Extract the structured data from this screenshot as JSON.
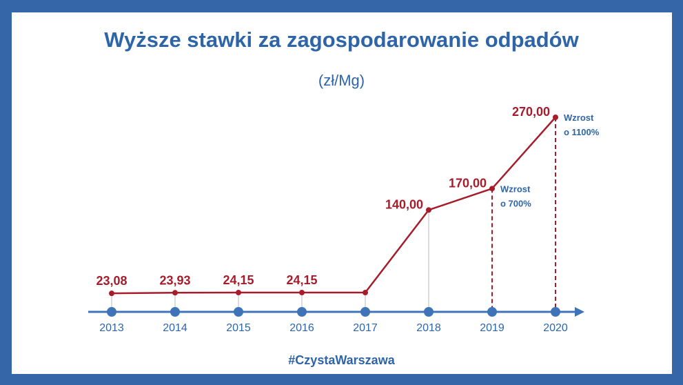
{
  "title": "Wyższe stawki za zagospodarowanie odpadów",
  "subtitle": "(zł/Mg)",
  "hashtag": "#CzystaWarszawa",
  "colors": {
    "frame": "#3566a8",
    "axis": "#3f74b8",
    "line": "#a61c2b",
    "text_blue": "#2e64a8"
  },
  "chart_data": {
    "type": "line",
    "title": "Wyższe stawki za zagospodarowanie odpadów",
    "subtitle": "(zł/Mg)",
    "categories": [
      "2013",
      "2014",
      "2015",
      "2016",
      "2017",
      "2018",
      "2019",
      "2020"
    ],
    "series": [
      {
        "values": [
          23.08,
          23.93,
          24.15,
          24.15,
          24.15,
          140.0,
          170.0,
          270.0
        ]
      }
    ],
    "value_labels": [
      "23,08",
      "23,93",
      "24,15",
      "24,15",
      "",
      "140,00",
      "170,00",
      "270,00"
    ],
    "annotations": [
      {
        "category": "2019",
        "line1": "Wzrost",
        "line2": "o 700%"
      },
      {
        "category": "2020",
        "line1": "Wzrost",
        "line2": "o 1100%"
      }
    ],
    "ylim": [
      0,
      290
    ],
    "grid": false,
    "legend": "none"
  }
}
